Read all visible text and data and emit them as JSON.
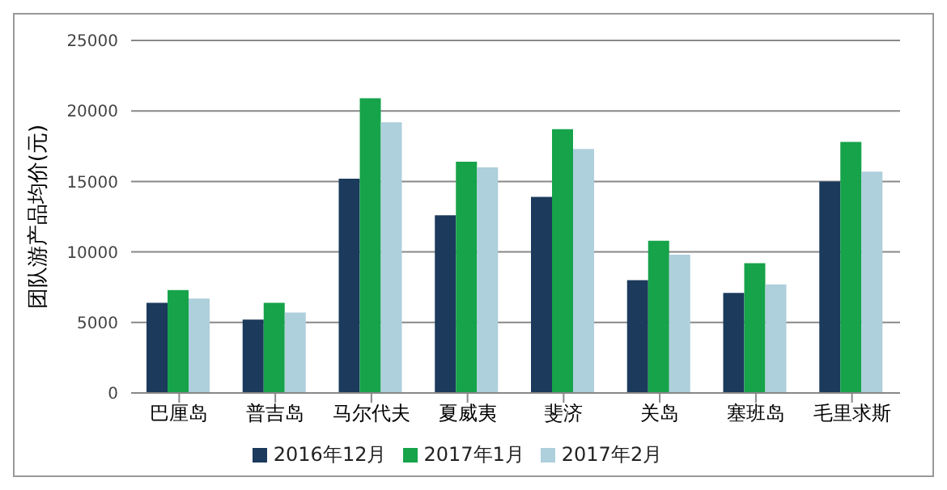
{
  "chart_data": {
    "type": "bar",
    "ylabel": "团队游产品均价(元)",
    "categories": [
      "巴厘岛",
      "普吉岛",
      "马尔代夫",
      "夏威夷",
      "斐济",
      "关岛",
      "塞班岛",
      "毛里求斯"
    ],
    "series": [
      {
        "name": "2016年12月",
        "color": "#1b3a5c",
        "values": [
          6400,
          5200,
          15200,
          12600,
          13900,
          8000,
          7100,
          15000
        ]
      },
      {
        "name": "2017年1月",
        "color": "#16a34a",
        "values": [
          7300,
          6400,
          20900,
          16400,
          18700,
          10800,
          9200,
          17800
        ]
      },
      {
        "name": "2017年2月",
        "color": "#aecfdc",
        "values": [
          6700,
          5700,
          19200,
          16000,
          17300,
          9800,
          7700,
          15700
        ]
      }
    ],
    "ylim": [
      0,
      25000
    ],
    "yticks": [
      0,
      5000,
      10000,
      15000,
      20000,
      25000
    ],
    "grid": "y",
    "legend": "bottom"
  }
}
